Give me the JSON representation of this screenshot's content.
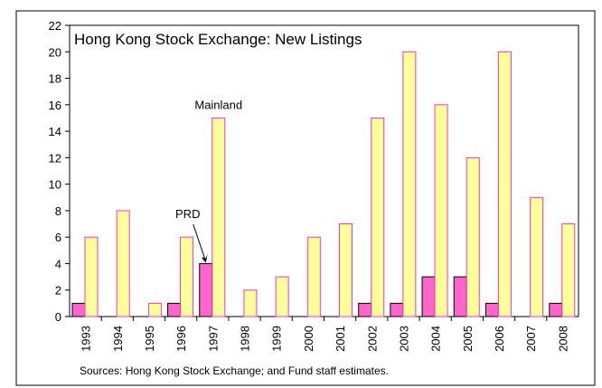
{
  "chart_data": {
    "type": "bar",
    "title": "Hong Kong Stock Exchange: New Listings",
    "note": "Sources: Hong Kong Stock Exchange; and Fund staff estimates.",
    "categories": [
      "1993",
      "1994",
      "1995",
      "1996",
      "1997",
      "1998",
      "1999",
      "2000",
      "2001",
      "2002",
      "2003",
      "2004",
      "2005",
      "2006",
      "2007",
      "2008"
    ],
    "series": [
      {
        "name": "PRD",
        "color": "#ff66cc",
        "values": [
          1,
          0,
          0,
          1,
          4,
          0,
          0,
          0,
          0,
          1,
          1,
          3,
          3,
          1,
          0,
          1
        ]
      },
      {
        "name": "Mainland",
        "color": "#ffff99",
        "values": [
          6,
          8,
          1,
          6,
          15,
          2,
          3,
          6,
          7,
          15,
          20,
          16,
          12,
          20,
          9,
          7
        ]
      }
    ],
    "ylim": [
      0,
      22
    ],
    "yticks": [
      0,
      2,
      4,
      6,
      8,
      10,
      12,
      14,
      16,
      18,
      20,
      22
    ],
    "grid": false
  }
}
